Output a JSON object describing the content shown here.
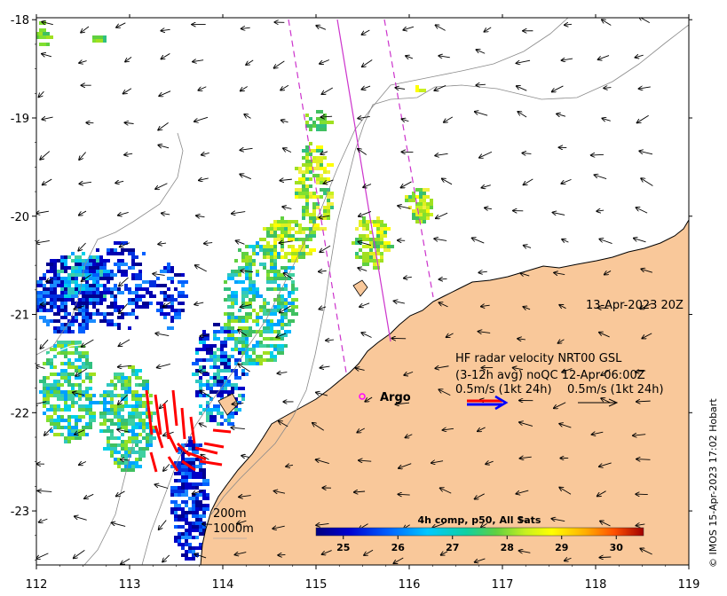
{
  "map": {
    "date_label": "13-Apr-2023 20Z",
    "legend": {
      "line1": "HF radar velocity  NRT00 GSL",
      "line2": "(3-12h avg) noQC 12-Apr 06:00Z",
      "scale_radar": "0.5m/s (1kt 24h)",
      "scale_model": "0.5m/s (1kt 24h)"
    },
    "argo_label": "Argo",
    "depth_contours": [
      "200m",
      "1000m"
    ],
    "colorbar": {
      "title": "4h comp, p50, All Sats",
      "ticks": [
        "25",
        "26",
        "27",
        "28",
        "29",
        "30"
      ],
      "range": [
        24.5,
        30.5
      ]
    },
    "credit": "© IMOS 15-Apr-2023 17:02 Hobart",
    "x_axis": {
      "ticks": [
        "112",
        "113",
        "114",
        "115",
        "116",
        "117",
        "118",
        "119"
      ],
      "range": [
        112,
        119
      ]
    },
    "y_axis": {
      "ticks": [
        "-18",
        "-19",
        "-20",
        "-21",
        "-22",
        "-23"
      ],
      "range": [
        -23.55,
        -17.98
      ]
    },
    "colors": {
      "land": "#f9c89a",
      "argo": "#ff00ff",
      "swath": "#cc33cc",
      "radar_vector": "#ff0000",
      "legend_blue": "#0000ff"
    }
  }
}
